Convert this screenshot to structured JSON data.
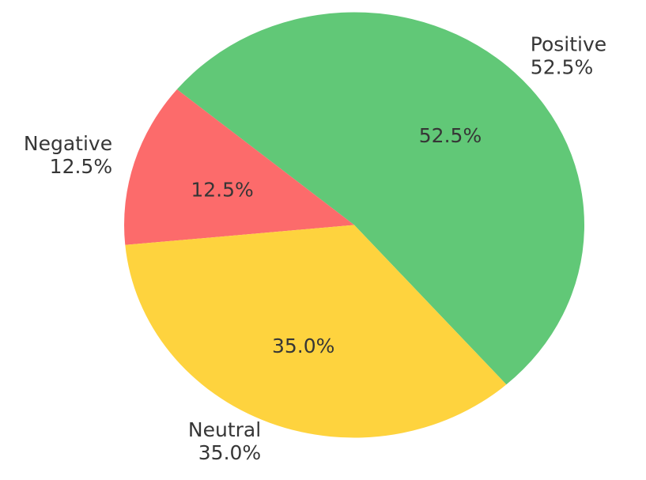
{
  "chart_data": {
    "type": "pie",
    "slices": [
      {
        "label": "Positive",
        "value": 52.5,
        "color": "#61c877",
        "inner_label": "52.5%",
        "outer_label_lines": [
          "Positive",
          "52.5%"
        ]
      },
      {
        "label": "Negative",
        "value": 12.5,
        "color": "#fc6b6b",
        "inner_label": "12.5%",
        "outer_label_lines": [
          "Negative",
          "12.5%"
        ]
      },
      {
        "label": "Neutral",
        "value": 35.0,
        "color": "#fed33e",
        "inner_label": "35.0%",
        "outer_label_lines": [
          "Neutral",
          "35.0%"
        ]
      }
    ],
    "start_angle_deg": -48.6,
    "direction": "counterclockwise",
    "pct_distance": 0.6,
    "label_distance": 1.1,
    "text_color": "#363636",
    "background": "#ffffff",
    "legend_position": "none"
  }
}
